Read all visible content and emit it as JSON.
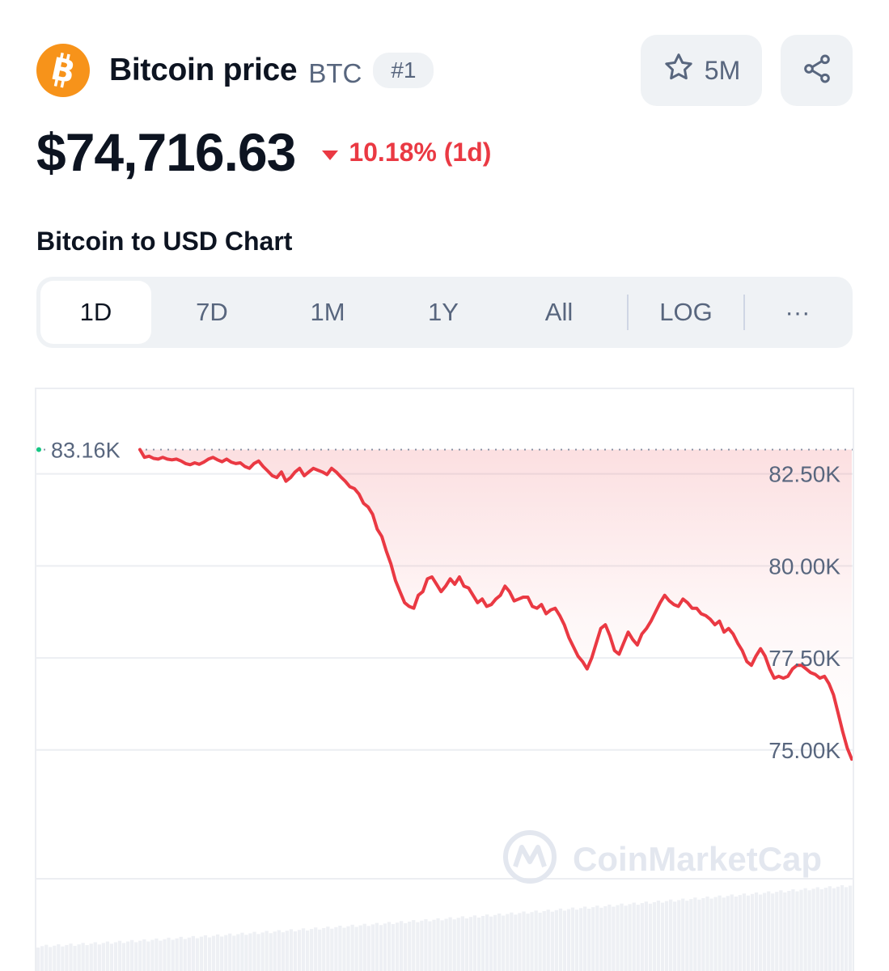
{
  "coin": {
    "name": "Bitcoin price",
    "symbol": "BTC",
    "rank": "#1",
    "logo_icon": "bitcoin-icon"
  },
  "actions": {
    "watchlist_count": "5M",
    "star_icon": "star-icon",
    "share_icon": "share-icon"
  },
  "price": {
    "value": "$74,716.63",
    "change": "10.18% (1d)",
    "direction": "down",
    "down_color": "#ea3943"
  },
  "chart_title": "Bitcoin to USD Chart",
  "tabs": {
    "t1D": "1D",
    "t7D": "7D",
    "t1M": "1M",
    "t1Y": "1Y",
    "tAll": "All",
    "tLOG": "LOG",
    "more": "···",
    "active": "1D"
  },
  "watermark": "CoinMarketCap",
  "chart_data": {
    "type": "line",
    "title": "",
    "xlabel": "",
    "ylabel": "",
    "ylim": [
      71500,
      84800
    ],
    "grid": true,
    "y_ticks": [
      82500,
      80000,
      77500,
      75000
    ],
    "y_tick_labels": [
      "82.50K",
      "80.00K",
      "77.50K",
      "75.00K"
    ],
    "open_price": 83160,
    "open_label": "83.16K",
    "line_color": "#ea3943",
    "series": [
      {
        "values": [
          83160,
          82950,
          82980,
          82920,
          82900,
          82950,
          82900,
          82880,
          82900,
          82850,
          82780,
          82750,
          82800,
          82760,
          82820,
          82900,
          82950,
          82880,
          82830,
          82900,
          82820,
          82780,
          82800,
          82700,
          82650,
          82780,
          82850,
          82700,
          82580,
          82450,
          82400,
          82550,
          82300,
          82400,
          82550,
          82650,
          82450,
          82550,
          82650,
          82600,
          82550,
          82480,
          82650,
          82550,
          82420,
          82300,
          82150,
          82100,
          81950,
          81700,
          81600,
          81400,
          81000,
          80800,
          80400,
          80050,
          79600,
          79300,
          79000,
          78900,
          78850,
          79200,
          79300,
          79650,
          79700,
          79500,
          79300,
          79450,
          79650,
          79500,
          79700,
          79450,
          79400,
          79200,
          79000,
          79100,
          78900,
          78950,
          79100,
          79200,
          79450,
          79300,
          79050,
          79100,
          79150,
          79150,
          78900,
          78850,
          78950,
          78700,
          78800,
          78850,
          78650,
          78400,
          78050,
          77800,
          77550,
          77400,
          77200,
          77500,
          77900,
          78300,
          78400,
          78100,
          77700,
          77600,
          77900,
          78200,
          78000,
          77850,
          78150,
          78300,
          78500,
          78750,
          79000,
          79200,
          79050,
          78950,
          78900,
          79100,
          79000,
          78850,
          78850,
          78700,
          78650,
          78550,
          78400,
          78500,
          78200,
          78300,
          78150,
          77900,
          77700,
          77400,
          77300,
          77550,
          77750,
          77550,
          77200,
          76950,
          77000,
          76950,
          77000,
          77200,
          77300,
          77300,
          77200,
          77100,
          77050,
          76950,
          77000,
          76800,
          76500,
          76000,
          75500,
          75050,
          74750
        ]
      }
    ]
  }
}
